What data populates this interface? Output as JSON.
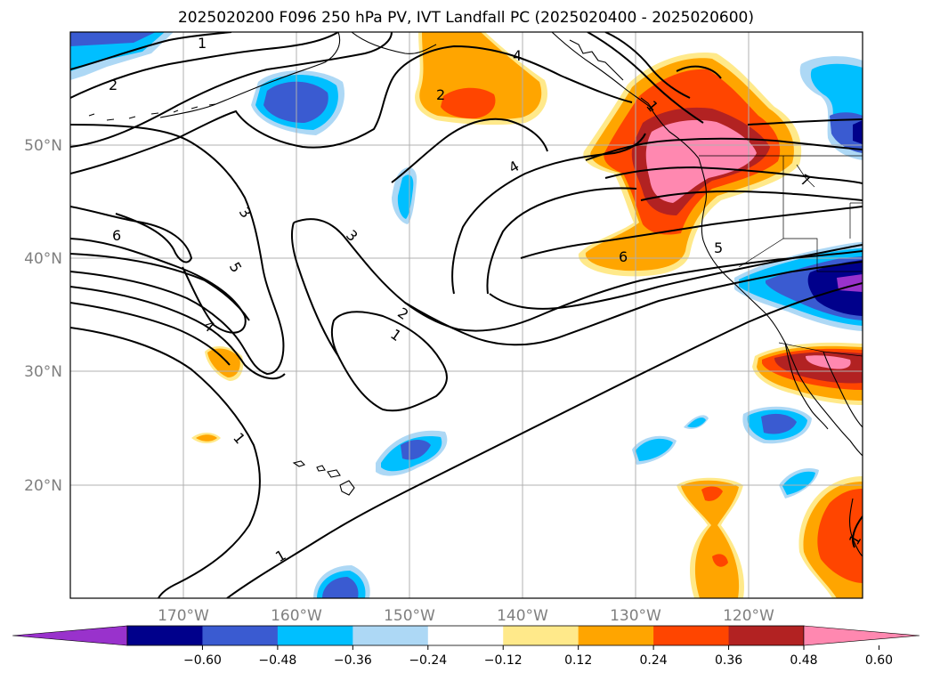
{
  "title": "2025020200 F096 250 hPa PV, IVT Landfall PC (2025020400 - 2025020600)",
  "map": {
    "lon_range": [
      -180,
      -110
    ],
    "lat_range": [
      10,
      60
    ],
    "lat_ticks": [
      "50°N",
      "40°N",
      "30°N",
      "20°N"
    ],
    "lon_ticks": [
      "170°W",
      "160°W",
      "150°W",
      "140°W",
      "130°W",
      "120°W"
    ],
    "grid": true
  },
  "colorbar": {
    "ticks": [
      "−0.60",
      "−0.48",
      "−0.36",
      "−0.24",
      "−0.12",
      "0.12",
      "0.24",
      "0.36",
      "0.48",
      "0.60"
    ],
    "colors": [
      "#9932cc",
      "#00008b",
      "#3a5bd1",
      "#00bfff",
      "#add8f5",
      "#ffffff",
      "#ffe98a",
      "#ffa500",
      "#ff4500",
      "#b22222",
      "#ff88b0"
    ],
    "extend": "both"
  },
  "contour_labels": [
    "1",
    "2",
    "4",
    "2",
    "6",
    "3",
    "3",
    "5",
    "4",
    "1",
    "2",
    "1",
    "4",
    "6",
    "7",
    "5",
    "1",
    "1",
    "1"
  ]
}
